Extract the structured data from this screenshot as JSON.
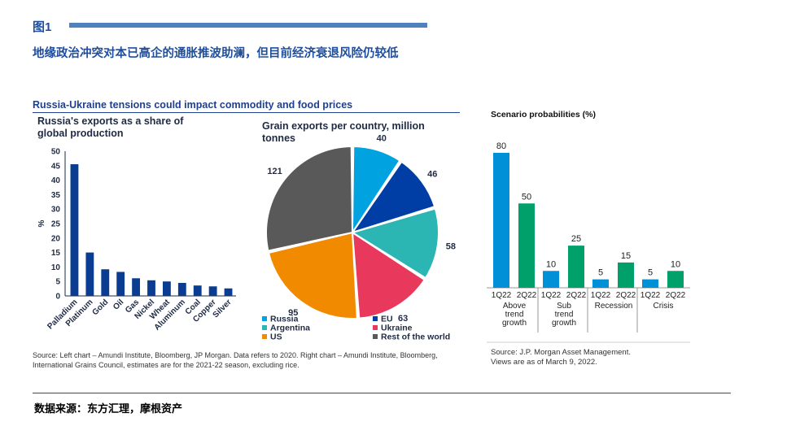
{
  "page": {
    "figure_label": "图1",
    "subtitle": "地缘政治冲突对本已高企的通胀推波助澜，但目前经济衰退风险仍较低",
    "footer": "数据来源：东方汇理，摩根资产"
  },
  "left_panel": {
    "title": "Russia-Ukraine tensions could impact commodity and food prices",
    "source": "Source: Left chart – Amundi Institute, Bloomberg, JP Morgan. Data refers to 2020. Right chart – Amundi Institute, Bloomberg, International Grains Council, estimates are for the 2021-22 season, excluding rice."
  },
  "right_panel": {
    "source_line1": "Source: J.P. Morgan Asset Management.",
    "source_line2": "Views are as of March 9, 2022."
  },
  "colors": {
    "accent": "#1f4e9c",
    "bar_navy": "#0a3d91",
    "pie_russia": "#00a3e0",
    "pie_eu": "#003da5",
    "pie_argentina": "#2bb5b3",
    "pie_ukraine": "#e8385b",
    "pie_us": "#f28a00",
    "pie_rest": "#595959",
    "scn_1q22": "#0090d8",
    "scn_2q22": "#00a06a"
  },
  "chart_data": [
    {
      "type": "bar",
      "title": "Russia's exports as a share of global production",
      "ylabel": "%",
      "categories": [
        "Palladium",
        "Platinum",
        "Gold",
        "Oil",
        "Gas",
        "Nickel",
        "Wheat",
        "Aluminum",
        "Coal",
        "Copper",
        "Silver"
      ],
      "values": [
        45.5,
        15,
        9.2,
        8.3,
        6.1,
        5.4,
        5,
        4.5,
        3.6,
        3.3,
        2.6
      ],
      "yticks": [
        0,
        5,
        10,
        15,
        20,
        25,
        30,
        35,
        40,
        45,
        50
      ],
      "ylim": [
        0,
        50
      ]
    },
    {
      "type": "pie",
      "title": "Grain exports per country, million tonnes",
      "slices": [
        {
          "name": "Russia",
          "value": 40,
          "color": "#00a3e0"
        },
        {
          "name": "EU",
          "value": 46,
          "color": "#003da5"
        },
        {
          "name": "Argentina",
          "value": 58,
          "color": "#2bb5b3"
        },
        {
          "name": "Ukraine",
          "value": 63,
          "color": "#e8385b"
        },
        {
          "name": "US",
          "value": 95,
          "color": "#f28a00"
        },
        {
          "name": "Rest of the world",
          "value": 121,
          "color": "#595959"
        }
      ],
      "legend": [
        {
          "name": "Russia",
          "color": "#00a3e0"
        },
        {
          "name": "EU",
          "color": "#003da5"
        },
        {
          "name": "Argentina",
          "color": "#2bb5b3"
        },
        {
          "name": "Ukraine",
          "color": "#e8385b"
        },
        {
          "name": "US",
          "color": "#f28a00"
        },
        {
          "name": "Rest of the world",
          "color": "#595959"
        }
      ]
    },
    {
      "type": "bar",
      "title": "Scenario probabilities (%)",
      "groups": [
        {
          "label": "Above trend growth",
          "label_lines": [
            "Above",
            "trend",
            "growth"
          ]
        },
        {
          "label": "Sub trend growth",
          "label_lines": [
            "Sub",
            "trend",
            "growth"
          ]
        },
        {
          "label": "Recession",
          "label_lines": [
            "Recession"
          ]
        },
        {
          "label": "Crisis",
          "label_lines": [
            "Crisis"
          ]
        }
      ],
      "series": [
        {
          "name": "1Q22",
          "values": [
            80,
            10,
            5,
            5
          ],
          "color": "#0090d8"
        },
        {
          "name": "2Q22",
          "values": [
            50,
            25,
            15,
            10
          ],
          "color": "#00a06a"
        }
      ],
      "ylim": [
        0,
        80
      ]
    }
  ]
}
